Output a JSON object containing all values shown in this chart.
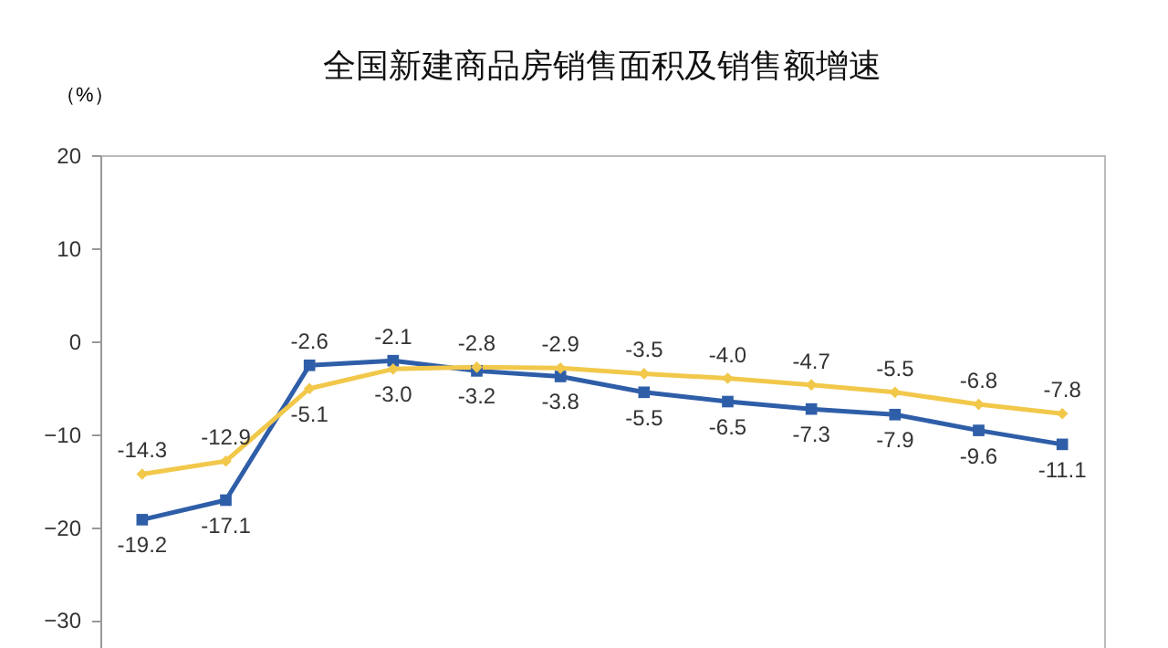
{
  "chart_data": {
    "type": "line",
    "title": "全国新建商品房销售面积及销售额增速",
    "ylabel": "（%）",
    "categories": [
      null,
      null,
      null,
      null,
      null,
      null,
      null,
      null,
      null,
      null,
      null,
      null
    ],
    "series": [
      {
        "color": "#2f5ea8",
        "marker": "square",
        "values": [
          -19.2,
          -17.1,
          -2.6,
          -2.1,
          -3.2,
          -3.8,
          -5.5,
          -6.5,
          -7.3,
          -7.9,
          -9.6,
          -11.1
        ],
        "value_labels": [
          "-19.2",
          "-17.1",
          "-2.6",
          "-2.1",
          "-3.2",
          "-3.8",
          "-5.5",
          "-6.5",
          "-7.3",
          "-7.9",
          "-9.6",
          "-11.1"
        ]
      },
      {
        "color": "#f2c84b",
        "marker": "diamond",
        "values": [
          -14.3,
          -12.9,
          -5.1,
          -3.0,
          -2.8,
          -2.9,
          -3.5,
          -4.0,
          -4.7,
          -5.5,
          -6.8,
          -7.8
        ],
        "value_labels": [
          "-14.3",
          "-12.9",
          "-5.1",
          "-3.0",
          "-2.8",
          "-2.9",
          "-3.5",
          "-4.0",
          "-4.7",
          "-5.5",
          "-6.8",
          "-7.8"
        ]
      }
    ],
    "ylim": [
      -33,
      20
    ],
    "yticks": [
      -30,
      -20,
      -10,
      0,
      10,
      20
    ],
    "grid": false,
    "legend": false
  }
}
